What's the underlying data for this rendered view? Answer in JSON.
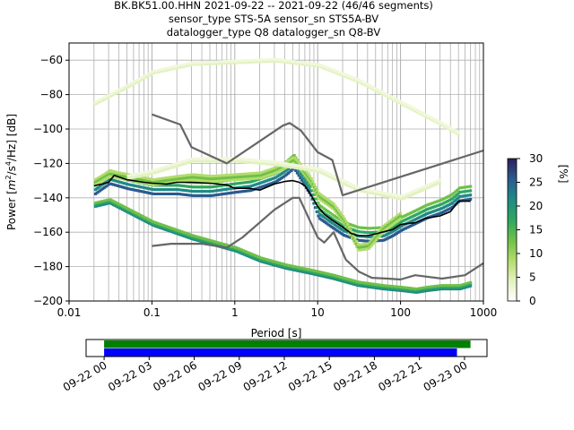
{
  "figure": {
    "title_lines": [
      "BK.BK51.00.HHN   2021-09-22 -- 2021-09-22  (46/46 segments)",
      "sensor_type STS-5A sensor_sn STS5A-BV",
      "datalogger_type Q8 datalogger_sn Q8-BV"
    ]
  },
  "chart_data": [
    {
      "type": "heatmap",
      "title": "BK.BK51.00.HHN   2021-09-22 -- 2021-09-22  (46/46 segments)",
      "xlabel": "Period [s]",
      "ylabel": "Power [m²/s⁴/Hz] [dB]",
      "ylabel_parts": {
        "pre": "Power [",
        "m": "m",
        "sup1": "2",
        "mid": "/s",
        "sup2": "4",
        "post": "/Hz] [dB]"
      },
      "x_scale": "log",
      "xlim": [
        0.01,
        1000
      ],
      "ylim": [
        -200,
        -50
      ],
      "x_ticks": [
        0.01,
        0.1,
        1,
        10,
        100,
        1000
      ],
      "x_tick_labels": [
        "0.01",
        "0.1",
        "1",
        "10",
        "100",
        "1000"
      ],
      "y_ticks": [
        -200,
        -180,
        -160,
        -140,
        -120,
        -100,
        -80,
        -60
      ],
      "y_tick_labels": [
        "−200",
        "−180",
        "−160",
        "−140",
        "−120",
        "−100",
        "−80",
        "−60"
      ],
      "grid": true,
      "colorbar": {
        "label": "[%]",
        "range": [
          0,
          30
        ],
        "ticks": [
          0,
          5,
          10,
          15,
          20,
          25,
          30
        ],
        "tick_labels": [
          "0",
          "5",
          "10",
          "15",
          "20",
          "25",
          "30"
        ],
        "colors": [
          "#ffffff",
          "#e3f2c0",
          "#b2dc6a",
          "#6fc04a",
          "#2ea661",
          "#1f8a85",
          "#2a5b8f",
          "#2d1e5b"
        ]
      },
      "series": [
        {
          "x": [
            0.1,
            0.22,
            0.3,
            0.8,
            3.8,
            4.6,
            6.3,
            10,
            15,
            20,
            1000
          ],
          "y": [
            -91.5,
            -97.4,
            -110.5,
            -120.0,
            -98.0,
            -96.5,
            -101.0,
            -113.5,
            -118.0,
            -138.5,
            -112.5
          ]
        },
        {
          "x": [
            0.1,
            0.17,
            0.4,
            0.8,
            1.24,
            3.0,
            5.0,
            6.0,
            10,
            12,
            15.6,
            21.9,
            31.6,
            45,
            70,
            100,
            150,
            316,
            600,
            1000
          ],
          "y": [
            -168.0,
            -166.7,
            -166.7,
            -169.0,
            -163.0,
            -147.0,
            -140.0,
            -140.0,
            -163.0,
            -166.0,
            -160.0,
            -176.0,
            -183.0,
            -186.5,
            -187.0,
            -187.5,
            -185.0,
            -187.0,
            -185.0,
            -178.0
          ]
        },
        {
          "x": [
            0.02,
            0.025,
            0.03,
            0.035,
            0.05,
            0.08,
            0.1,
            0.15,
            0.2,
            0.3,
            0.5,
            0.8,
            1,
            1.5,
            2,
            3,
            4,
            5,
            6,
            7,
            8,
            10,
            12,
            15,
            20,
            25,
            30,
            40,
            50,
            60,
            80,
            100,
            150,
            200,
            300,
            400,
            500,
            700
          ],
          "y": [
            -133,
            -132,
            -131,
            -127,
            -129.5,
            -131,
            -131.5,
            -132,
            -131,
            -131,
            -131.5,
            -132.5,
            -134.5,
            -134.5,
            -135.5,
            -132,
            -130.5,
            -130,
            -131,
            -133,
            -137,
            -145,
            -149.5,
            -153,
            -157,
            -160.5,
            -162,
            -162,
            -161,
            -160,
            -158.5,
            -155.5,
            -154.5,
            -152,
            -150.5,
            -148,
            -142,
            -142
          ]
        }
      ],
      "probability_bands": [
        {
          "x": [
            0.02,
            0.03,
            0.05,
            0.08,
            0.1,
            0.2,
            0.3,
            0.5,
            1,
            1.5,
            2,
            3,
            4,
            5,
            6,
            8,
            10,
            15,
            20,
            30,
            40,
            60,
            80,
            100,
            150,
            200,
            300,
            400,
            500,
            700
          ],
          "y": [
            -134,
            -128,
            -131,
            -133,
            -134,
            -134,
            -135,
            -135,
            -133,
            -132,
            -130,
            -127,
            -123,
            -119,
            -125,
            -135,
            -148,
            -154,
            -158,
            -161,
            -161.5,
            -161,
            -158,
            -155,
            -151,
            -148,
            -145,
            -142,
            -138,
            -137
          ],
          "spread": 2.5,
          "colors": [
            "#2a5b8f",
            "#1f8a85",
            "#2ea661",
            "#6fc04a"
          ]
        },
        {
          "x": [
            0.02,
            0.03,
            0.05,
            0.08,
            0.1,
            0.2,
            0.3,
            0.5,
            1,
            2,
            3,
            4,
            5,
            6,
            8,
            10,
            15,
            20,
            30,
            40,
            60,
            100
          ],
          "y": [
            -131,
            -126,
            -128,
            -130,
            -131,
            -129,
            -128,
            -129,
            -128,
            -127,
            -124,
            -121,
            -118,
            -122,
            -130,
            -139,
            -145,
            -153,
            -169,
            -168,
            -158,
            -150
          ],
          "spread": 1.5,
          "colors": [
            "#b2dc6a",
            "#6fc04a",
            "#b2dc6a"
          ]
        },
        {
          "x": [
            0.02,
            0.03,
            0.1,
            0.3,
            1,
            2,
            4,
            8,
            15,
            30,
            60,
            100,
            150,
            200,
            300,
            500,
            700
          ],
          "y": [
            -144,
            -142,
            -155,
            -163,
            -170,
            -176,
            -180,
            -183,
            -186,
            -190,
            -192,
            -193,
            -194,
            -193,
            -192,
            -192,
            -190
          ],
          "spread": 1,
          "colors": [
            "#1f8a85",
            "#2ea661",
            "#6fc04a"
          ]
        },
        {
          "x": [
            0.02,
            0.05,
            0.1,
            0.3,
            1,
            3,
            10,
            30,
            100,
            300,
            500
          ],
          "y": [
            -85,
            -75,
            -67,
            -62,
            -61,
            -60,
            -63,
            -72,
            -85,
            -97,
            -103
          ],
          "spread": 1,
          "colors": [
            "#e3f2c0",
            "#f0f8dc"
          ]
        },
        {
          "x": [
            0.05,
            0.1,
            0.3,
            1,
            3,
            10,
            30,
            100,
            300
          ],
          "y": [
            -128,
            -125,
            -118,
            -118,
            -120,
            -124,
            -135,
            -140,
            -130
          ],
          "spread": 1.5,
          "colors": [
            "#e3f2c0",
            "#f0f8dc"
          ]
        }
      ]
    },
    {
      "type": "bar",
      "xlabel": "",
      "ylabel": "",
      "tick_labels": [
        "09-22 00",
        "09-22 03",
        "09-22 06",
        "09-22 09",
        "09-22 12",
        "09-22 15",
        "09-22 18",
        "09-22 21",
        "09-23 00"
      ],
      "tick_hours": [
        0,
        3,
        6,
        9,
        12,
        15,
        18,
        21,
        24
      ],
      "x_range_hours": [
        -1.2,
        25.5
      ],
      "bars": [
        {
          "start_hours": 0,
          "end_hours": 24.4,
          "color": "#008000"
        },
        {
          "start_hours": 0,
          "end_hours": 23.5,
          "color": "#0000ff"
        }
      ]
    }
  ]
}
